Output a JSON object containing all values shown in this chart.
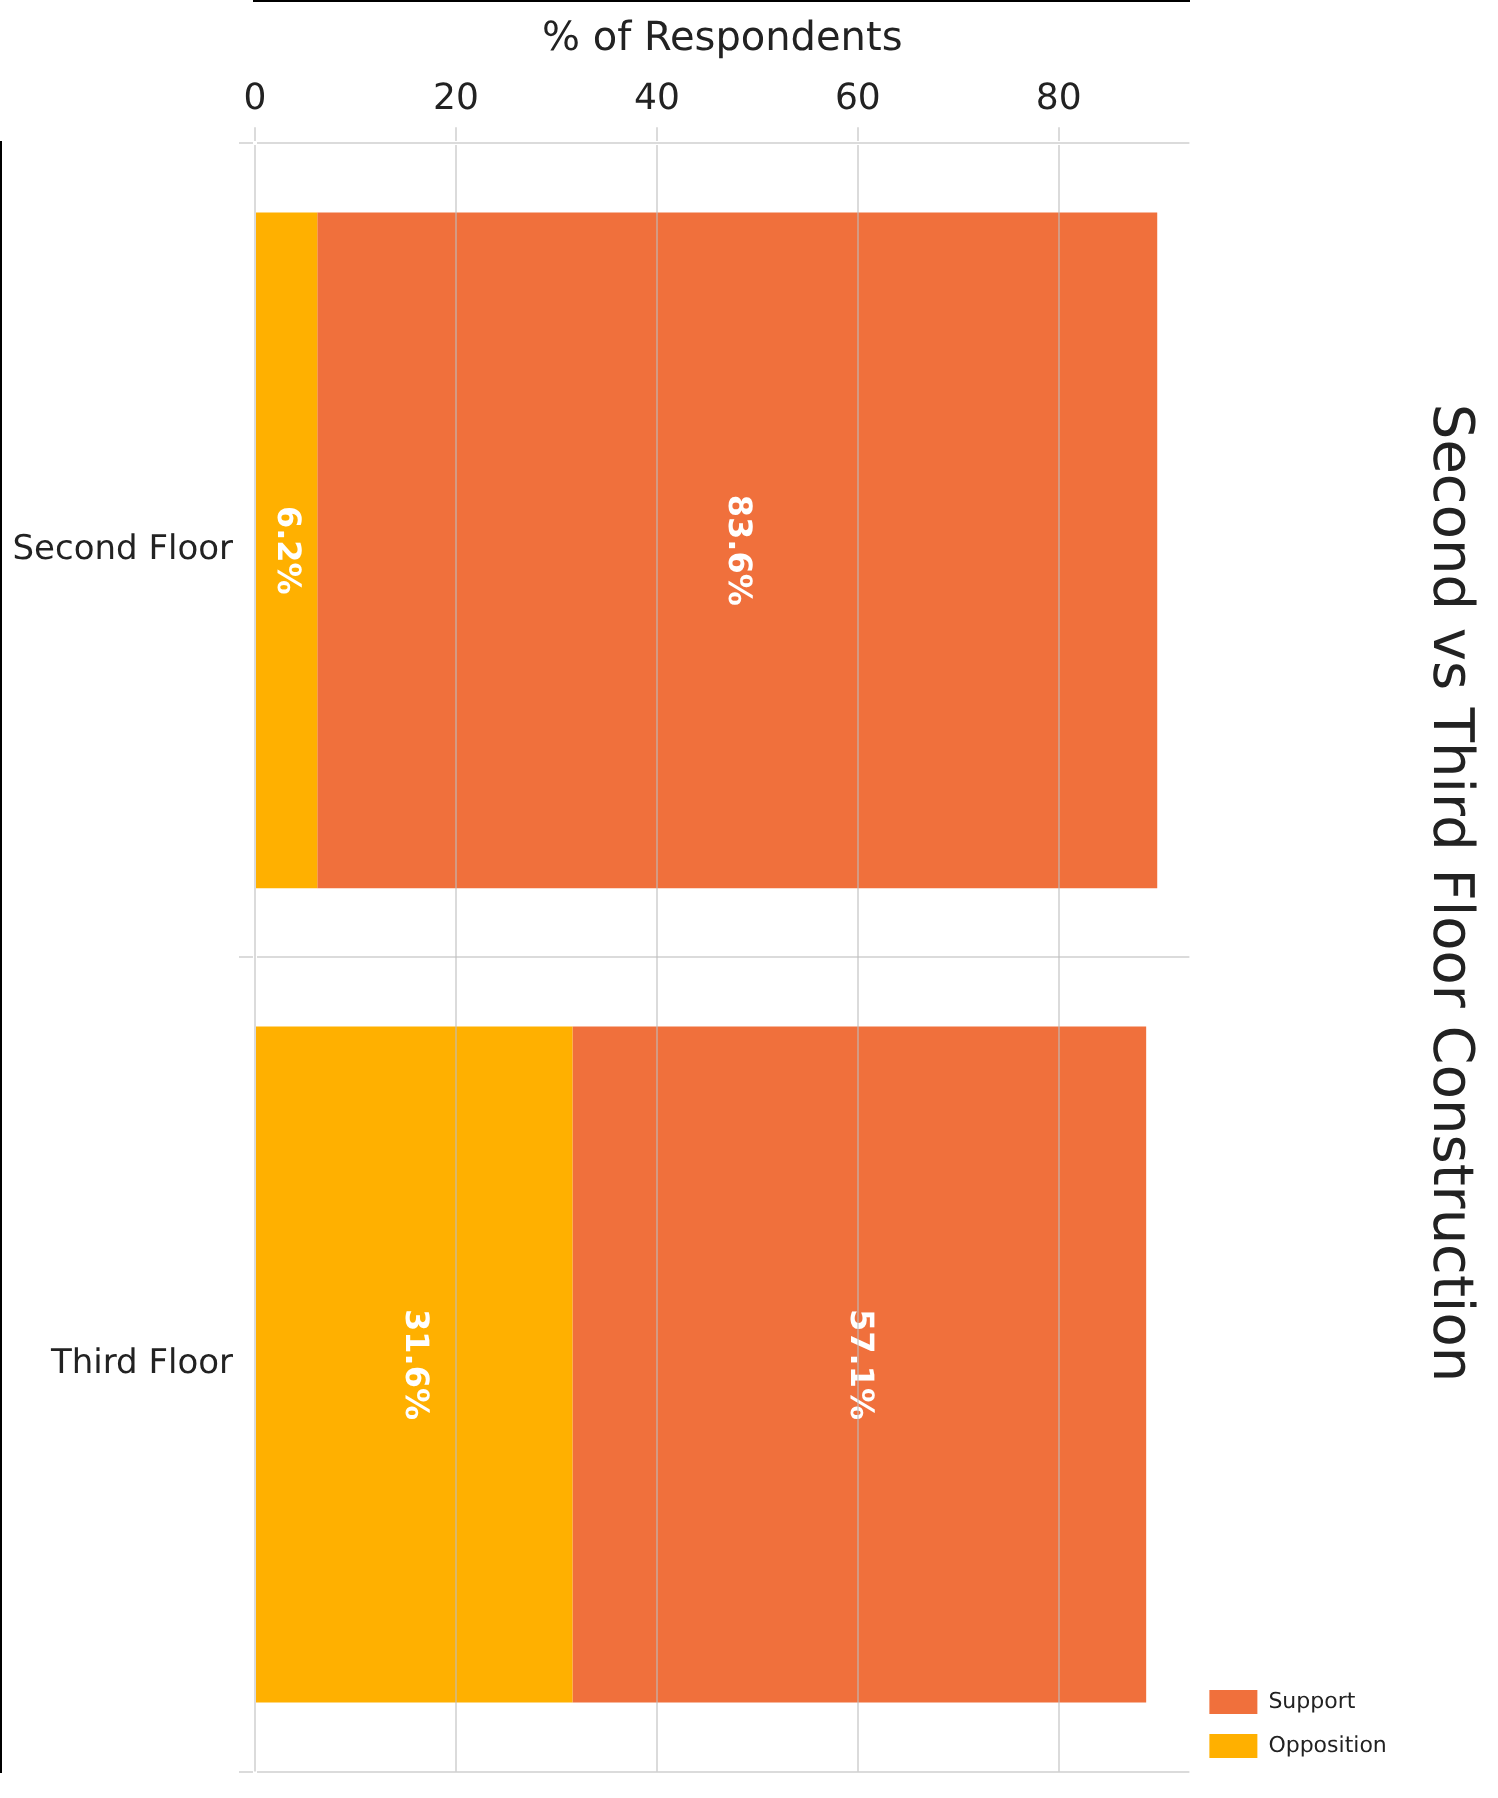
{
  "chart_data": {
    "type": "bar",
    "orientation": "horizontal",
    "title": "Second vs Third Floor Construction",
    "xlabel": "% of Respondents",
    "categories": [
      "Second Floor",
      "Third Floor"
    ],
    "stacked": true,
    "series": [
      {
        "name": "Opposition",
        "color": "#ffb000",
        "values": [
          6.2,
          31.6
        ],
        "value_labels": [
          "6.2%",
          "31.6%"
        ]
      },
      {
        "name": "Support",
        "color": "#f0703c",
        "values": [
          83.6,
          57.1
        ],
        "value_labels": [
          "83.6%",
          "57.1%"
        ]
      }
    ],
    "xlim": [
      0,
      93
    ],
    "xticks": [
      0,
      20,
      40,
      60,
      80
    ],
    "grid": true,
    "legend": "right bottom"
  }
}
